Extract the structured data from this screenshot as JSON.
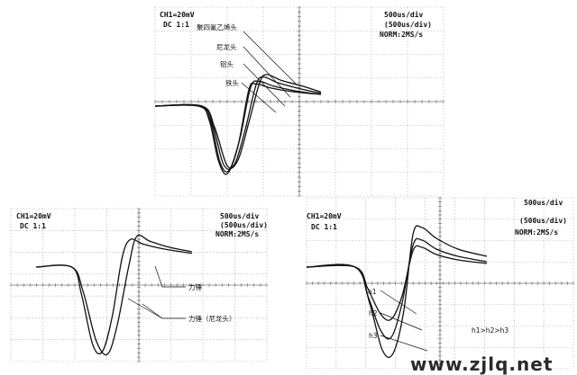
{
  "chart_data": [
    {
      "type": "line",
      "header_left": [
        "CH1=20mV",
        "DC 1:1"
      ],
      "header_right": [
        "500us/div",
        "(500us/div)",
        "NORM:2MS/s"
      ],
      "series": [
        {
          "name": "聚四氟乙烯头",
          "x": [
            0.0,
            1.2,
            1.5,
            1.75,
            2.0,
            2.3,
            2.6,
            2.8,
            3.2,
            3.8,
            4.6
          ],
          "y": [
            0.0,
            0.0,
            -0.6,
            -2.3,
            -2.9,
            -1.7,
            0.7,
            0.95,
            0.78,
            0.62,
            0.5
          ]
        },
        {
          "name": "尼龙头",
          "x": [
            0.0,
            1.25,
            1.55,
            1.8,
            2.05,
            2.35,
            2.65,
            2.9,
            3.3,
            3.9,
            4.6
          ],
          "y": [
            0.0,
            0.0,
            -0.7,
            -2.4,
            -2.75,
            -1.4,
            0.8,
            1.05,
            0.85,
            0.65,
            0.5
          ]
        },
        {
          "name": "铝头",
          "x": [
            0.0,
            1.3,
            1.6,
            1.9,
            2.2,
            2.5,
            2.8,
            3.0,
            3.4,
            4.0,
            4.6
          ],
          "y": [
            0.0,
            0.0,
            -0.8,
            -2.5,
            -2.5,
            -1.0,
            0.9,
            1.25,
            1.0,
            0.75,
            0.55
          ]
        },
        {
          "name": "铁头",
          "x": [
            0.0,
            1.3,
            1.65,
            2.0,
            2.3,
            2.6,
            2.9,
            3.1,
            3.5,
            4.1,
            4.6
          ],
          "y": [
            0.0,
            0.0,
            -0.9,
            -2.55,
            -2.3,
            -0.7,
            1.0,
            1.35,
            1.1,
            0.85,
            0.6
          ]
        }
      ],
      "labels": [
        "聚四氟乙烯头",
        "尼龙头",
        "铝头",
        "铁头"
      ]
    },
    {
      "type": "line",
      "header_left": [
        "CH1=20mV",
        "DC 1:1"
      ],
      "header_right": [
        "500us/div",
        "(500us/div)",
        "NORM:2MS/s"
      ],
      "series": [
        {
          "name": "力锤",
          "x": [
            0.0,
            1.1,
            1.4,
            1.75,
            2.05,
            2.35,
            2.65,
            2.9,
            3.3,
            3.9,
            4.8
          ],
          "y": [
            0.0,
            0.0,
            -0.9,
            -2.55,
            -2.75,
            -1.6,
            0.3,
            0.9,
            0.75,
            0.6,
            0.45
          ]
        },
        {
          "name": "力锤（尼龙头）",
          "x": [
            0.0,
            1.1,
            1.45,
            1.85,
            2.2,
            2.5,
            2.85,
            3.1,
            3.5,
            4.1,
            4.8
          ],
          "y": [
            0.0,
            0.0,
            -0.8,
            -2.4,
            -2.85,
            -1.9,
            0.0,
            1.0,
            0.85,
            0.65,
            0.5
          ]
        }
      ],
      "labels": [
        "力锤",
        "力锤（尼龙头）"
      ]
    },
    {
      "type": "line",
      "header_left": [
        "CH1=20mV",
        "DC 1:1"
      ],
      "header_right": [
        "500us/div",
        "(500us/div)",
        "NORM:2MS/s"
      ],
      "series": [
        {
          "name": "h1",
          "x": [
            0.0,
            1.35,
            1.7,
            2.05,
            2.35,
            2.65,
            2.95,
            3.2,
            3.6,
            4.2,
            5.0
          ],
          "y": [
            0.0,
            0.0,
            -0.6,
            -1.3,
            -1.45,
            -0.8,
            0.45,
            0.55,
            0.35,
            0.2,
            0.1
          ]
        },
        {
          "name": "h2",
          "x": [
            0.0,
            1.35,
            1.7,
            2.05,
            2.35,
            2.65,
            2.95,
            3.2,
            3.6,
            4.2,
            5.0
          ],
          "y": [
            0.0,
            0.0,
            -0.8,
            -1.75,
            -1.95,
            -1.0,
            0.6,
            0.75,
            0.5,
            0.3,
            0.15
          ]
        },
        {
          "name": "h3",
          "x": [
            0.0,
            1.35,
            1.75,
            2.1,
            2.4,
            2.7,
            2.95,
            3.2,
            3.6,
            4.2,
            5.0
          ],
          "y": [
            0.0,
            0.0,
            -1.0,
            -2.3,
            -2.4,
            -1.2,
            0.9,
            1.1,
            0.8,
            0.5,
            0.3
          ]
        }
      ],
      "labels": [
        "h1",
        "h2",
        "h3"
      ],
      "relation": "h1>h2>h3"
    }
  ],
  "watermark": "www.zjlq.net"
}
